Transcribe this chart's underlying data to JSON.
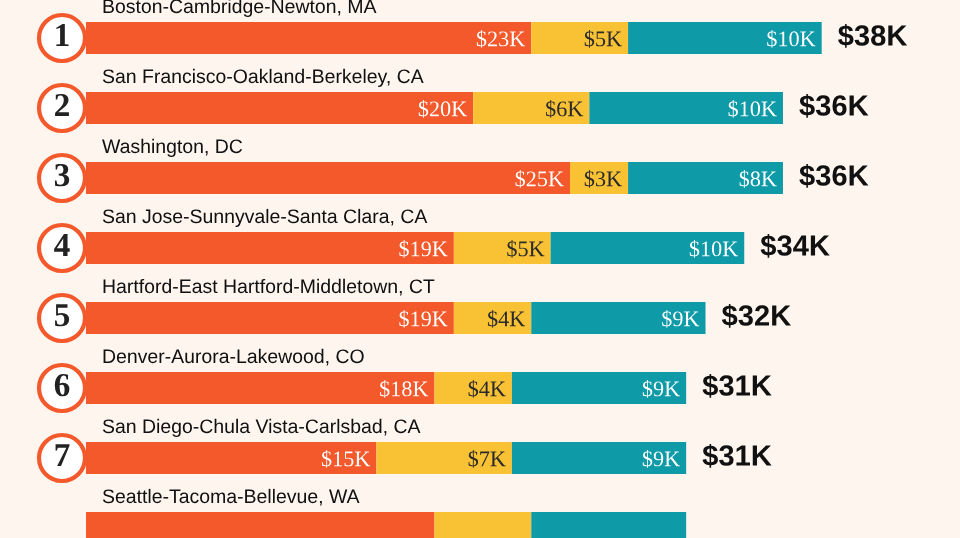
{
  "chart_data": {
    "type": "bar",
    "orientation": "horizontal",
    "stacked": true,
    "categories": [
      "Boston-Cambridge-Newton, MA",
      "San Francisco-Oakland-Berkeley, CA",
      "Washington, DC",
      "San Jose-Sunnyvale-Santa Clara, CA",
      "Hartford-East Hartford-Middletown, CT",
      "Denver-Aurora-Lakewood, CO",
      "San Diego-Chula Vista-Carlsbad, CA",
      "Seattle-Tacoma-Bellevue, WA"
    ],
    "series": [
      {
        "color": "#f4592c",
        "values": [
          23,
          20,
          25,
          19,
          19,
          18,
          15,
          18
        ],
        "value_labels": [
          "$23K",
          "$20K",
          "$25K",
          "$19K",
          "$19K",
          "$18K",
          "$15K",
          null
        ]
      },
      {
        "color": "#f9c235",
        "values": [
          5,
          6,
          3,
          5,
          4,
          4,
          7,
          5
        ],
        "value_labels": [
          "$5K",
          "$6K",
          "$3K",
          "$5K",
          "$4K",
          "$4K",
          "$7K",
          null
        ]
      },
      {
        "color": "#0e9aa7",
        "values": [
          10,
          10,
          8,
          10,
          9,
          9,
          9,
          8
        ],
        "value_labels": [
          "$10K",
          "$10K",
          "$8K",
          "$10K",
          "$9K",
          "$9K",
          "$9K",
          null
        ]
      }
    ],
    "totals": [
      "$38K",
      "$36K",
      "$36K",
      "$34K",
      "$32K",
      "$31K",
      "$31K",
      null
    ],
    "annotations": [
      "1",
      "2",
      "3",
      "4",
      "5",
      "6",
      "7"
    ]
  }
}
